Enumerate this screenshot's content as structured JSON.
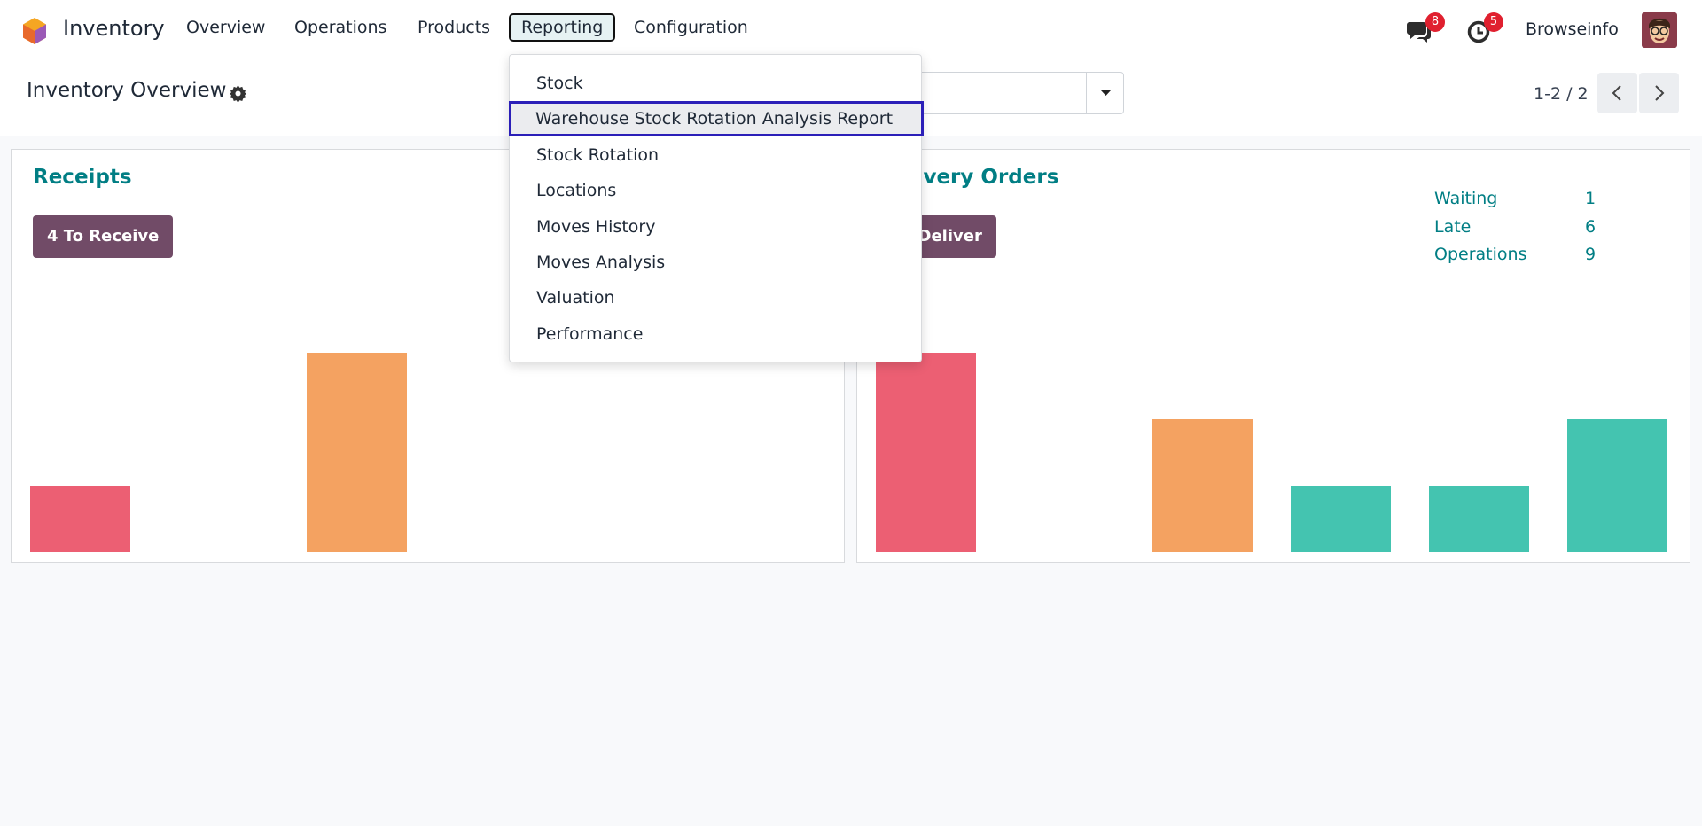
{
  "navbar": {
    "app": "Inventory",
    "menu": [
      "Overview",
      "Operations",
      "Products",
      "Reporting",
      "Configuration"
    ],
    "active_menu": 3,
    "messages_badge": 8,
    "activities_badge": 5,
    "user": "Browseinfo"
  },
  "control_panel": {
    "title": "Inventory Overview",
    "pager": "1-2 / 2"
  },
  "reporting_menu": {
    "items": [
      "Stock",
      "Warehouse Stock Rotation Analysis Report",
      "Stock Rotation",
      "Locations",
      "Moves History",
      "Moves Analysis",
      "Valuation",
      "Performance"
    ],
    "highlighted": 1
  },
  "cards": [
    {
      "title": "Receipts",
      "button": "4 To Receive",
      "graph": {
        "values": [
          1,
          0,
          3,
          0,
          0,
          0
        ],
        "colors": [
          "#ec5f73",
          "#ec5f73",
          "#f4a261",
          "#44c4b0",
          "#44c4b0",
          "#44c4b0"
        ]
      }
    },
    {
      "title": "Delivery Orders",
      "button": "To Deliver",
      "stats": [
        {
          "label": "Waiting",
          "value": 1
        },
        {
          "label": "Late",
          "value": 6
        },
        {
          "label": "Operations",
          "value": 9
        }
      ],
      "graph": {
        "values": [
          3,
          0,
          2,
          1,
          1,
          2
        ],
        "colors": [
          "#ec5f73",
          "#ec5f73",
          "#f4a261",
          "#44c4b0",
          "#44c4b0",
          "#44c4b0"
        ]
      }
    }
  ]
}
